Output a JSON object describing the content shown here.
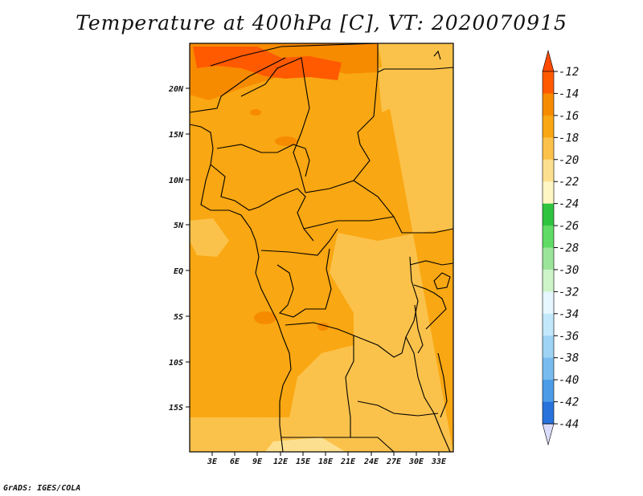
{
  "title": "Temperature at 400hPa [C], VT: 2020070915",
  "credit": "GrADS: IGES/COLA",
  "map": {
    "lat_labels": [
      "20N",
      "15N",
      "10N",
      "5N",
      "EQ",
      "5S",
      "10S",
      "15S"
    ],
    "lon_labels": [
      "3E",
      "6E",
      "9E",
      "12E",
      "15E",
      "18E",
      "21E",
      "24E",
      "27E",
      "30E",
      "33E"
    ]
  },
  "colorbar": {
    "labels": [
      "-12",
      "-14",
      "-16",
      "-18",
      "-20",
      "-22",
      "-24",
      "-26",
      "-28",
      "-30",
      "-32",
      "-34",
      "-36",
      "-38",
      "-40",
      "-42",
      "-44"
    ],
    "colors": [
      "#ff5a00",
      "#f78b00",
      "#f9a712",
      "#fbc24b",
      "#fde08f",
      "#fff6c4",
      "#2ec43f",
      "#5fdb66",
      "#9be59a",
      "#cdf4c9",
      "#e6f7ff",
      "#c2e8fb",
      "#9ed3f5",
      "#78bcef",
      "#4c9ce8",
      "#2873db",
      "#1453c0",
      "#0b2b8a"
    ],
    "top_color": "#ff4a00",
    "bottom_color": "#d9dcfa"
  }
}
